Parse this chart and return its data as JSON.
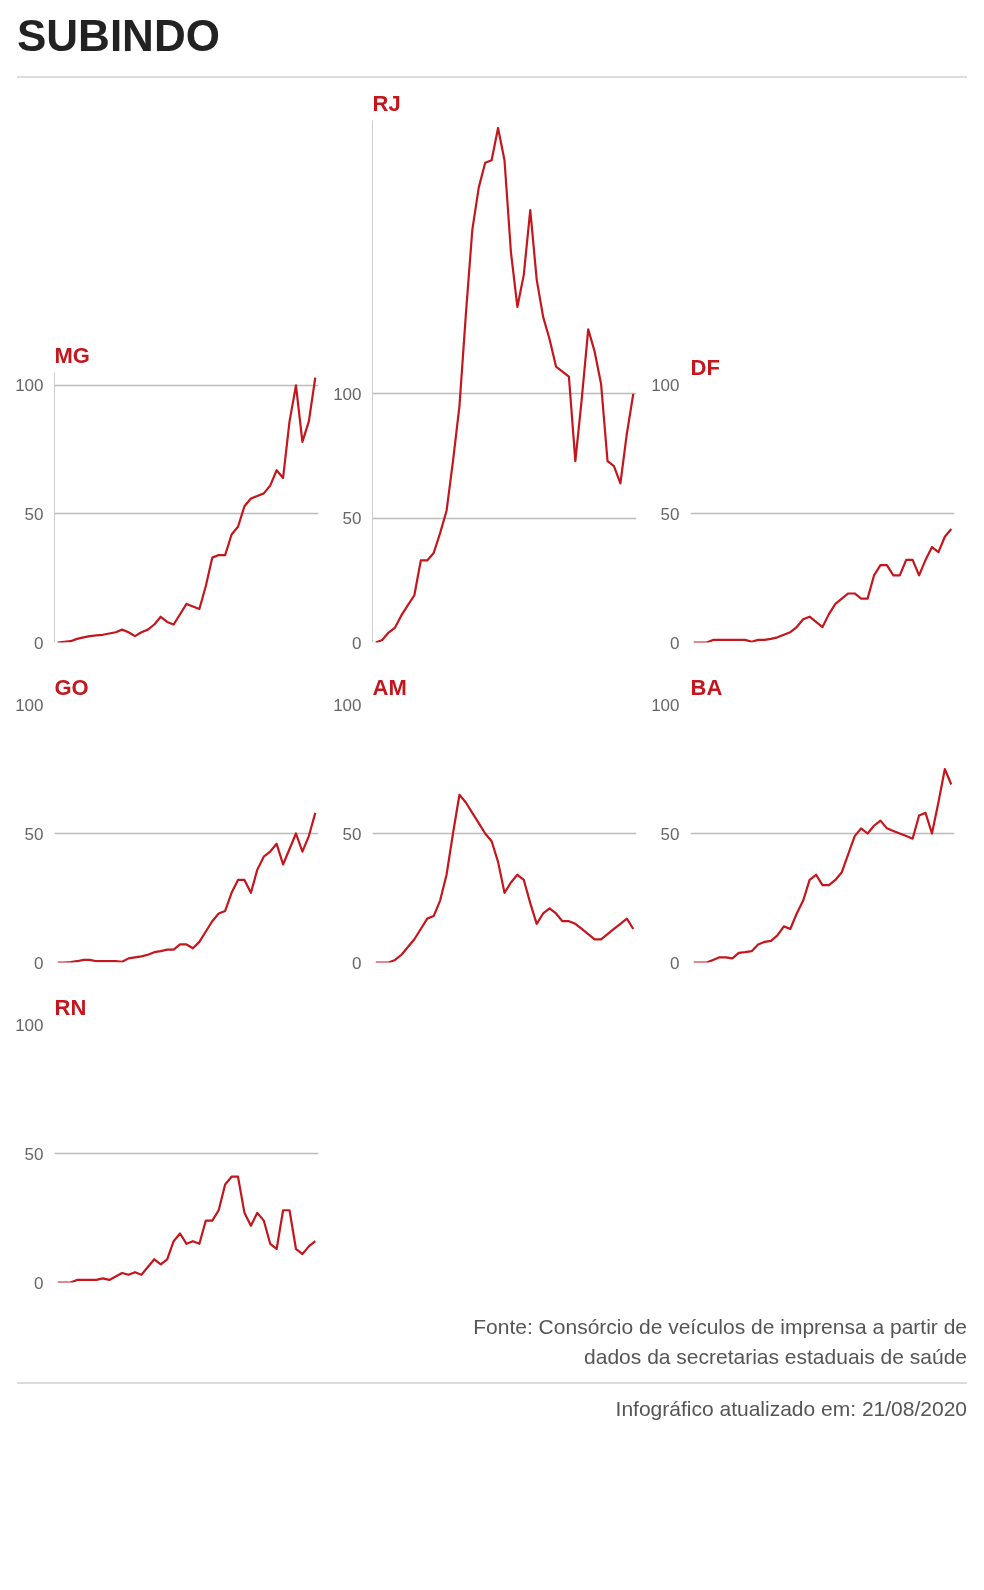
{
  "chart_data": [
    {
      "type": "other",
      "title": "SUBINDO"
    },
    {
      "type": "line",
      "title": "MG",
      "categories": [
        null,
        null,
        null,
        null,
        null,
        null,
        null,
        null,
        null,
        null,
        null,
        null,
        null,
        null,
        null,
        null,
        null,
        null,
        null,
        null,
        null,
        null,
        null,
        null,
        null,
        null,
        null,
        null,
        null,
        null,
        null,
        null,
        null,
        null,
        null,
        null,
        null,
        null,
        null,
        null,
        null
      ],
      "series": [
        {
          "color": "#c4161c",
          "values": [
            0,
            0.3,
            0.5,
            1.4,
            2,
            2.5,
            2.8,
            3,
            3.5,
            4,
            5,
            4,
            2.5,
            4,
            5,
            7,
            10,
            8,
            7,
            11,
            15,
            14,
            13,
            22,
            33,
            34,
            34,
            42,
            45,
            53,
            56,
            57,
            58,
            61,
            67,
            64,
            86,
            100,
            78,
            86,
            103
          ]
        }
      ],
      "ylim": [
        0,
        105
      ],
      "yticks": [
        0,
        50,
        100
      ],
      "grid": "y",
      "tick_labels": "y"
    },
    {
      "type": "line",
      "title": "RJ",
      "categories": [
        null,
        null,
        null,
        null,
        null,
        null,
        null,
        null,
        null,
        null,
        null,
        null,
        null,
        null,
        null,
        null,
        null,
        null,
        null,
        null,
        null,
        null,
        null,
        null,
        null,
        null,
        null,
        null,
        null,
        null,
        null,
        null,
        null,
        null,
        null,
        null,
        null,
        null,
        null,
        null,
        null
      ],
      "series": [
        {
          "color": "#c4161c",
          "values": [
            0,
            1,
            4,
            6,
            11,
            15,
            19,
            33,
            33,
            36,
            44,
            53,
            73,
            95,
            132,
            166,
            183,
            193,
            194,
            207,
            194,
            157,
            135,
            148,
            174,
            146,
            131,
            122,
            111,
            109,
            107,
            73,
            98,
            126,
            117,
            104,
            73,
            71,
            64,
            84,
            100
          ]
        }
      ],
      "ylim": [
        0,
        210
      ],
      "yticks": [
        0,
        50,
        100
      ],
      "grid": "y",
      "tick_labels": "y"
    },
    {
      "type": "line",
      "title": "DF",
      "categories": [
        null,
        null,
        null,
        null,
        null,
        null,
        null,
        null,
        null,
        null,
        null,
        null,
        null,
        null,
        null,
        null,
        null,
        null,
        null,
        null,
        null,
        null,
        null,
        null,
        null,
        null,
        null,
        null,
        null,
        null,
        null,
        null,
        null,
        null,
        null,
        null,
        null,
        null,
        null,
        null,
        null
      ],
      "series": [
        {
          "color": "#c4161c",
          "values": [
            0,
            0,
            0,
            1,
            1,
            1,
            1,
            1,
            1,
            0.3,
            1,
            1,
            1.4,
            2,
            3,
            4,
            6,
            9,
            10,
            8,
            6,
            11,
            15,
            17,
            19,
            19,
            17,
            17,
            26,
            30,
            30,
            26,
            26,
            32,
            32,
            26,
            32,
            37,
            35,
            41,
            44
          ]
        }
      ],
      "ylim": [
        0,
        100
      ],
      "yticks": [
        0,
        50,
        100
      ],
      "grid": "y",
      "tick_labels": "y"
    },
    {
      "type": "line",
      "title": "GO",
      "categories": [
        null,
        null,
        null,
        null,
        null,
        null,
        null,
        null,
        null,
        null,
        null,
        null,
        null,
        null,
        null,
        null,
        null,
        null,
        null,
        null,
        null,
        null,
        null,
        null,
        null,
        null,
        null,
        null,
        null,
        null,
        null,
        null,
        null,
        null,
        null,
        null,
        null,
        null,
        null,
        null,
        null
      ],
      "series": [
        {
          "color": "#c4161c",
          "values": [
            0,
            0,
            0.2,
            0.5,
            1,
            1,
            0.5,
            0.5,
            0.5,
            0.5,
            0.3,
            1.6,
            2,
            2.4,
            3,
            4,
            4.4,
            5,
            5,
            7,
            7,
            5.5,
            8,
            12,
            16,
            19,
            20,
            27,
            32,
            32,
            27,
            36,
            41,
            43,
            46,
            38,
            44,
            50,
            43,
            49,
            58
          ]
        }
      ],
      "ylim": [
        0,
        100
      ],
      "yticks": [
        0,
        50,
        100
      ],
      "grid": "y",
      "tick_labels": "y"
    },
    {
      "type": "line",
      "title": "AM",
      "categories": [
        null,
        null,
        null,
        null,
        null,
        null,
        null,
        null,
        null,
        null,
        null,
        null,
        null,
        null,
        null,
        null,
        null,
        null,
        null,
        null,
        null,
        null,
        null,
        null,
        null,
        null,
        null,
        null,
        null,
        null,
        null,
        null,
        null,
        null,
        null,
        null,
        null,
        null,
        null,
        null,
        null
      ],
      "series": [
        {
          "color": "#c4161c",
          "values": [
            0,
            0,
            0,
            1,
            3,
            6,
            9,
            13,
            17,
            18,
            24,
            34,
            50,
            65,
            62,
            58,
            54,
            50,
            47,
            39,
            27,
            31,
            34,
            32,
            23,
            15,
            19,
            21,
            19,
            16,
            16,
            15,
            13,
            11,
            9,
            9,
            11,
            13,
            15,
            17,
            13
          ]
        }
      ],
      "ylim": [
        0,
        100
      ],
      "yticks": [
        0,
        50,
        100
      ],
      "grid": "y",
      "tick_labels": "y"
    },
    {
      "type": "line",
      "title": "BA",
      "categories": [
        null,
        null,
        null,
        null,
        null,
        null,
        null,
        null,
        null,
        null,
        null,
        null,
        null,
        null,
        null,
        null,
        null,
        null,
        null,
        null,
        null,
        null,
        null,
        null,
        null,
        null,
        null,
        null,
        null,
        null,
        null,
        null,
        null,
        null,
        null,
        null,
        null,
        null,
        null,
        null,
        null
      ],
      "series": [
        {
          "color": "#c4161c",
          "values": [
            0,
            0,
            0,
            1,
            2,
            2,
            1.6,
            3.7,
            4,
            4.4,
            7,
            8,
            8.4,
            10.5,
            14,
            13,
            19,
            24,
            32,
            34,
            30,
            30,
            32,
            35,
            42,
            49,
            52,
            50,
            53,
            55,
            52,
            51,
            50,
            49,
            48,
            57,
            58,
            50,
            62,
            75,
            69
          ]
        }
      ],
      "ylim": [
        0,
        100
      ],
      "yticks": [
        0,
        50,
        100
      ],
      "grid": "y",
      "tick_labels": "y"
    },
    {
      "type": "line",
      "title": "RN",
      "categories": [
        null,
        null,
        null,
        null,
        null,
        null,
        null,
        null,
        null,
        null,
        null,
        null,
        null,
        null,
        null,
        null,
        null,
        null,
        null,
        null,
        null,
        null,
        null,
        null,
        null,
        null,
        null,
        null,
        null,
        null,
        null,
        null,
        null,
        null,
        null,
        null,
        null,
        null,
        null,
        null,
        null
      ],
      "series": [
        {
          "color": "#c4161c",
          "values": [
            0,
            0,
            0,
            1,
            1,
            1,
            1,
            1.6,
            1,
            2.3,
            3.7,
            3,
            4,
            3,
            6,
            9,
            7,
            9,
            16,
            19,
            15,
            16,
            15,
            24,
            24,
            28,
            38,
            41,
            41,
            27,
            22,
            27,
            24,
            15,
            13,
            28,
            28,
            13,
            11,
            14,
            16
          ]
        }
      ],
      "ylim": [
        0,
        100
      ],
      "yticks": [
        0,
        50,
        100
      ],
      "grid": "y",
      "tick_labels": "y"
    },
    {
      "type": "other",
      "annotations": [
        "Fonte: Consórcio de veículos de imprensa a partir de dados da secretarias estaduais de saúde",
        "Infográfico atualizado em: 21/08/2020"
      ]
    }
  ]
}
